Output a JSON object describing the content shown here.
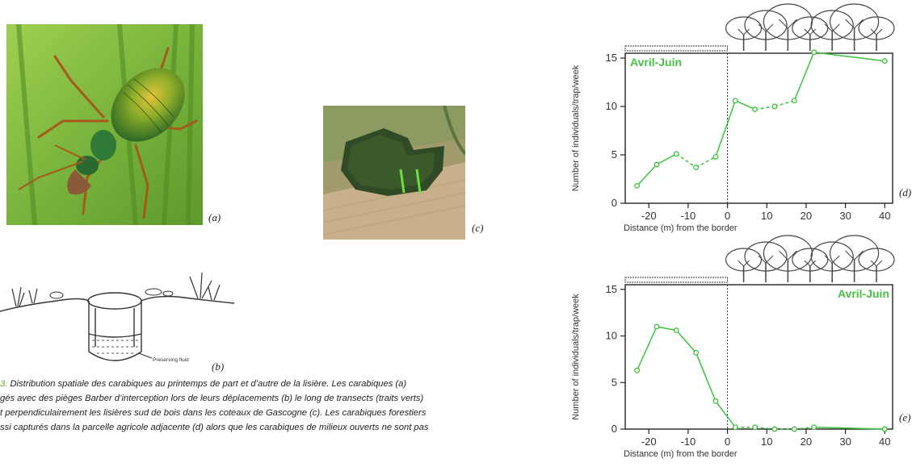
{
  "labels": {
    "a": "(a)",
    "b": "(b)",
    "c": "(c)",
    "d": "(d)",
    "e": "(e)"
  },
  "diagram_b": {
    "fluid_label": "Preserving fluid"
  },
  "caption": {
    "fig_number": "3.",
    "line1": " Distribution spatiale des carabiques au printemps de part et d’autre de la lisière. Les carabiques (a)",
    "line2": "gés avec des pièges Barber d’interception lors de leurs déplacements (b) le long de transects (traits verts)",
    "line3": "t perpendiculairement les lisières sud de bois dans les coteaux de Gascogne (c). Les carabiques forestiers",
    "line4": "ssi capturés dans la parcelle agricole adjacente (d) alors que les carabiques de milieux ouverts ne sont pas"
  },
  "colors": {
    "series": "#3cc43c",
    "text": "#333333",
    "accent": "#6aa820"
  },
  "chart_data": [
    {
      "type": "line",
      "panel": "(d)",
      "annotation": "Avril-Juin",
      "xlabel": "Distance (m) from the border",
      "ylabel": "Number of individuals/trap/week",
      "x": [
        -23,
        -18,
        -13,
        -8,
        -3,
        2,
        7,
        12,
        17,
        22,
        40
      ],
      "values": [
        1.8,
        4.0,
        5.1,
        3.7,
        4.8,
        10.6,
        9.7,
        10.0,
        10.6,
        15.6,
        14.7
      ],
      "xticks": [
        -20,
        -10,
        0,
        10,
        20,
        30,
        40
      ],
      "yticks": [
        0,
        5,
        10,
        15
      ],
      "xlim": [
        -26,
        42
      ],
      "ylim": [
        0,
        15.5
      ],
      "grid": false
    },
    {
      "type": "line",
      "panel": "(e)",
      "annotation": "Avril-Juin",
      "xlabel": "Distance (m) from the border",
      "ylabel": "Number of individuals/trap/week",
      "x": [
        -23,
        -18,
        -13,
        -8,
        -3,
        2,
        7,
        12,
        17,
        22,
        40
      ],
      "values": [
        6.3,
        11.0,
        10.6,
        8.2,
        3.0,
        0.2,
        0.2,
        0.0,
        0.0,
        0.2,
        0.0
      ],
      "xticks": [
        -20,
        -10,
        0,
        10,
        20,
        30,
        40
      ],
      "yticks": [
        0,
        5,
        10,
        15
      ],
      "xlim": [
        -26,
        42
      ],
      "ylim": [
        0,
        15.5
      ],
      "grid": false
    }
  ]
}
